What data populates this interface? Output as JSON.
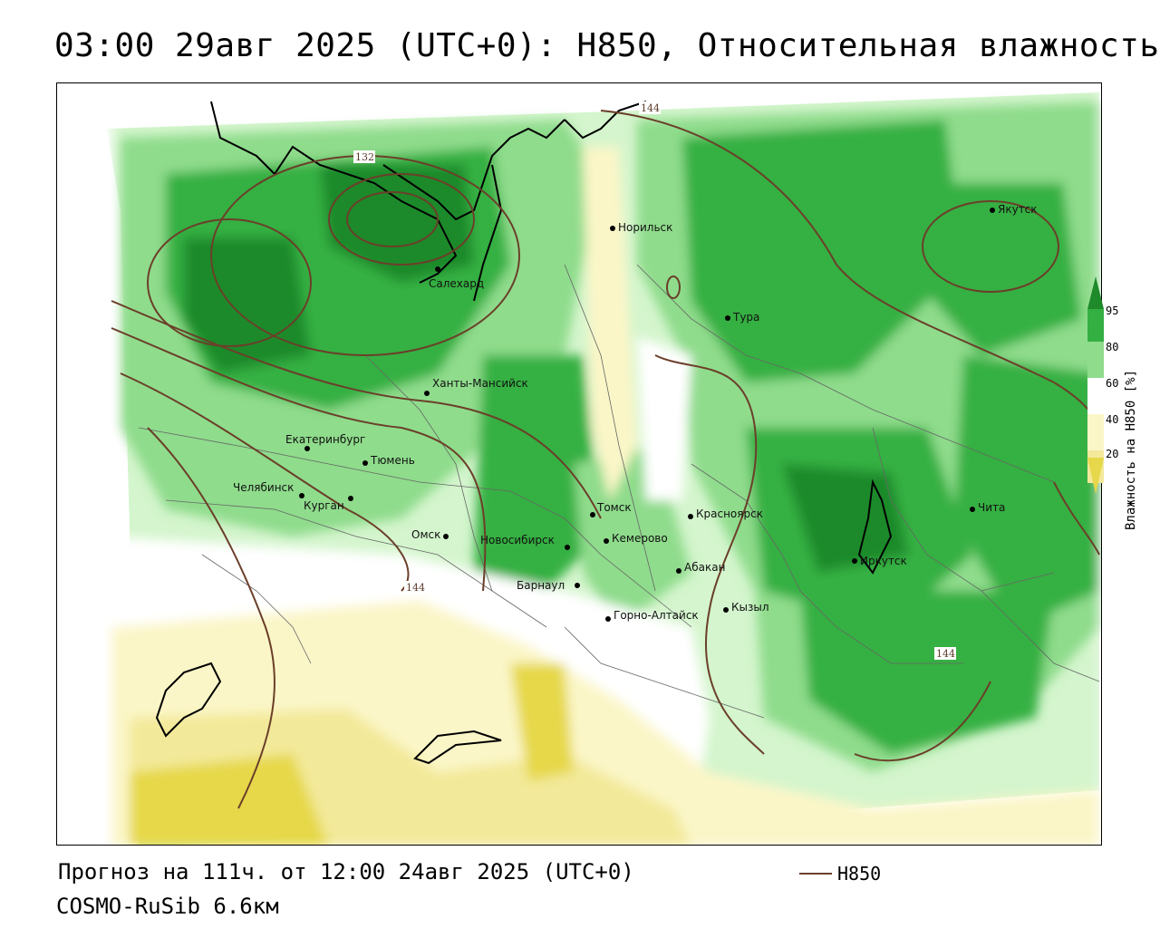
{
  "title": "03:00 29авг 2025 (UTC+0): H850, Относительная влажность",
  "footer": {
    "forecast": "Прогноз на 111ч. от 12:00 24авг 2025 (UTC+0)",
    "model": "COSMO-RuSib 6.6км",
    "legend_label": "H850"
  },
  "colorbar": {
    "label": "Влажность на H850 [%]",
    "ticks": [
      "95",
      "80",
      "60",
      "40",
      "20"
    ],
    "colors": [
      "#1f8a2a",
      "#34b043",
      "#8fdc8c",
      "#d4f5cd",
      "#ffffff",
      "#fbf6c8",
      "#f3e99a",
      "#e6d84a"
    ]
  },
  "colors": {
    "contour": "#6b3f2a",
    "boundary": "#666666",
    "coast": "#000000"
  },
  "contour_labels": [
    "144",
    "132",
    "144",
    "144"
  ],
  "cities": [
    {
      "name": "Норильск"
    },
    {
      "name": "Якутск"
    },
    {
      "name": "Салехард"
    },
    {
      "name": "Тура"
    },
    {
      "name": "Ханты-Мансийск"
    },
    {
      "name": "Екатеринбург"
    },
    {
      "name": "Тюмень"
    },
    {
      "name": "Челябинск"
    },
    {
      "name": "Курган"
    },
    {
      "name": "Омск"
    },
    {
      "name": "Новосибирск"
    },
    {
      "name": "Томск"
    },
    {
      "name": "Кемерово"
    },
    {
      "name": "Красноярск"
    },
    {
      "name": "Абакан"
    },
    {
      "name": "Барнаул"
    },
    {
      "name": "Горно-Алтайск"
    },
    {
      "name": "Кызыл"
    },
    {
      "name": "Иркутск"
    },
    {
      "name": "Чита"
    }
  ]
}
